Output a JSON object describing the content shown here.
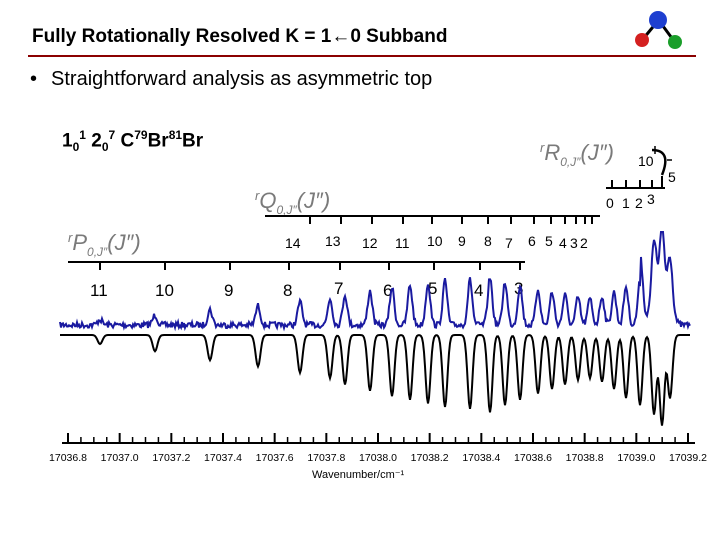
{
  "title": "Fully Rotationally Resolved K = 1←0 Subband",
  "bullet": "Straightforward analysis as asymmetric top",
  "species": {
    "v1": "1",
    "v1_sub": "0",
    "v1_sup": "1",
    "v2": "2",
    "v2_sub": "0",
    "v2_sup": "7",
    "mol": "C",
    "iso1": "79",
    "br1": "Br",
    "iso2": "81",
    "br2": "Br"
  },
  "branches": {
    "R": {
      "prefix": "r",
      "main": "R",
      "sub": "0,J″",
      "arg": "(J″)",
      "labels": [
        "10",
        "5",
        "0",
        "1",
        "2",
        "3"
      ]
    },
    "Q": {
      "prefix": "r",
      "main": "Q",
      "sub": "0,J″",
      "arg": "(J″)",
      "labels": [
        "14",
        "13",
        "12",
        "11",
        "10",
        "9",
        "8",
        "7",
        "6",
        "5",
        "4",
        "3",
        "2"
      ]
    },
    "P": {
      "prefix": "r",
      "main": "P",
      "sub": "0,J″",
      "arg": "(J″)",
      "labels": [
        "11",
        "10",
        "9",
        "8",
        "7",
        "6",
        "5",
        "4",
        "3"
      ]
    }
  },
  "colors": {
    "title_rule": "#8b0000",
    "experiment": "#1a1aa0",
    "simulation": "#000000",
    "branch_label": "#7a7a7a"
  },
  "logo": {
    "icon": "molecule-icon",
    "colors": [
      "#1e3fd0",
      "#d42020",
      "#1a9e2a"
    ]
  },
  "chart_data": {
    "type": "line",
    "xlabel": "Wavenumber/cm⁻¹",
    "ylabel": "",
    "xlim": [
      17036.7,
      17039.3
    ],
    "xticks": [
      "17036.8",
      "17037.0",
      "17037.2",
      "17037.4",
      "17037.6",
      "17037.8",
      "17038.0",
      "17038.2",
      "17038.4",
      "17038.6",
      "17038.8",
      "17039.0",
      "17039.2"
    ],
    "series": [
      {
        "kind": "experimental (upper trace)"
      },
      {
        "kind": "simulated (lower, inverted trace)"
      }
    ],
    "grid": false
  }
}
